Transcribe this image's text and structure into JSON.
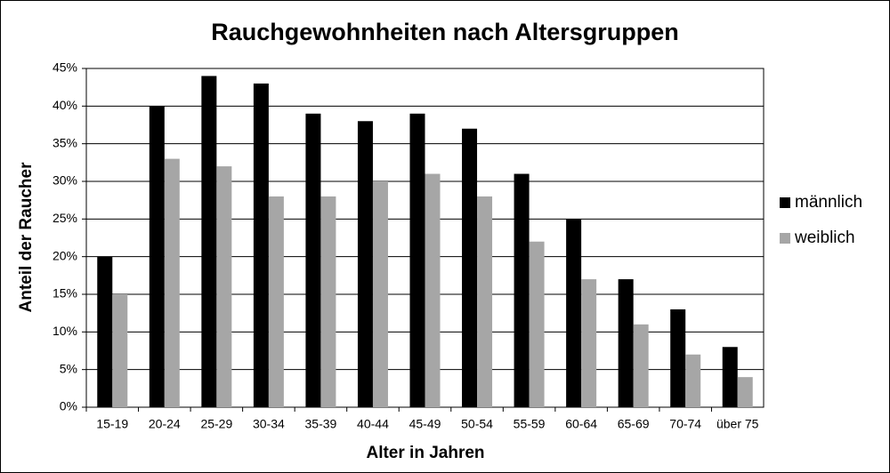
{
  "chart_data": {
    "type": "bar",
    "title": "Rauchgewohnheiten nach Altersgruppen",
    "x_label": "Alter in Jahren",
    "y_label": "Anteil der Raucher",
    "categories": [
      "15-19",
      "20-24",
      "25-29",
      "30-34",
      "35-39",
      "40-44",
      "45-49",
      "50-54",
      "55-59",
      "60-64",
      "65-69",
      "70-74",
      "über 75"
    ],
    "series": [
      {
        "name": "männlich",
        "color": "#000000",
        "values": [
          20,
          40,
          44,
          43,
          39,
          38,
          39,
          37,
          31,
          25,
          17,
          13,
          8
        ]
      },
      {
        "name": "weiblich",
        "color": "#a6a6a6",
        "values": [
          15,
          33,
          32,
          28,
          28,
          30,
          31,
          28,
          22,
          17,
          11,
          7,
          4
        ]
      }
    ],
    "ylim": [
      0,
      45
    ],
    "yticks": [
      {
        "value": 0,
        "label": "0%"
      },
      {
        "value": 5,
        "label": "5%"
      },
      {
        "value": 10,
        "label": "10%"
      },
      {
        "value": 15,
        "label": "15%"
      },
      {
        "value": 20,
        "label": "20%"
      },
      {
        "value": 25,
        "label": "25%"
      },
      {
        "value": 30,
        "label": "30%"
      },
      {
        "value": 35,
        "label": "35%"
      },
      {
        "value": 40,
        "label": "40%"
      },
      {
        "value": 45,
        "label": "45%"
      }
    ],
    "grid": true,
    "legend": "right"
  }
}
